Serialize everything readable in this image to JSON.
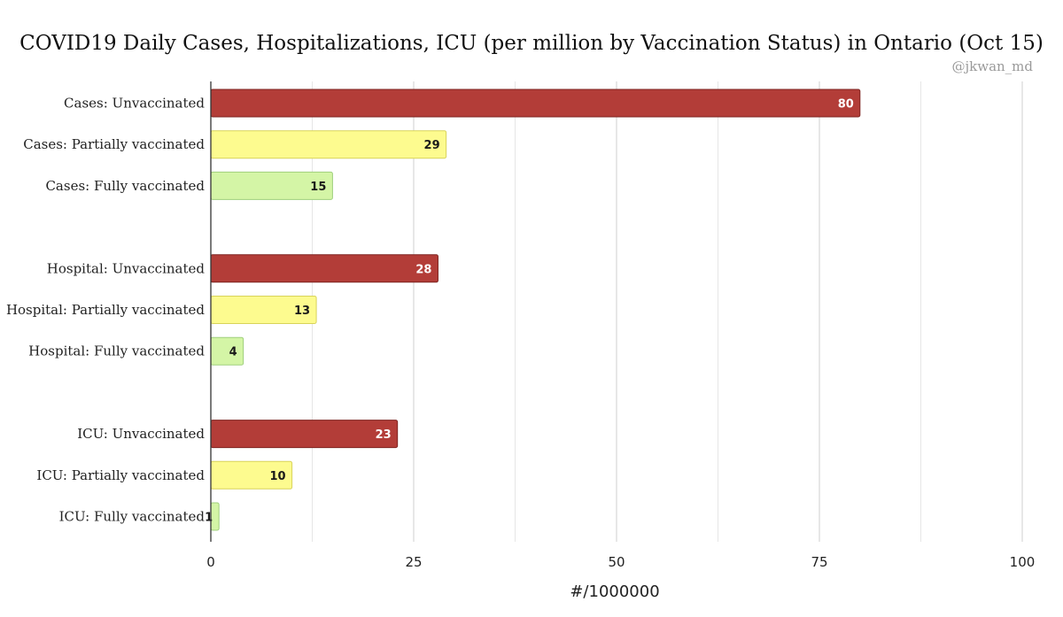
{
  "chart_data": {
    "type": "bar",
    "orientation": "horizontal",
    "title": "COVID19 Daily Cases, Hospitalizations, ICU (per million by Vaccination Status) in Ontario (Oct 15)",
    "credit": "@jkwan_md",
    "xlabel": "#/1000000",
    "ylabel": "",
    "xlim": [
      0,
      100
    ],
    "ticks": [
      0,
      25,
      50,
      75,
      100
    ],
    "grid": true,
    "legend": "none",
    "colors": {
      "unvaccinated": "#b33d38",
      "partially": "#fdfb8f",
      "fully": "#d4f5a6"
    },
    "groups": [
      {
        "bars": [
          {
            "label": "Cases: Unvaccinated",
            "value": 80,
            "status": "unvaccinated"
          },
          {
            "label": "Cases: Partially vaccinated",
            "value": 29,
            "status": "partially"
          },
          {
            "label": "Cases: Fully vaccinated",
            "value": 15,
            "status": "fully"
          }
        ]
      },
      {
        "bars": [
          {
            "label": "Hospital: Unvaccinated",
            "value": 28,
            "status": "unvaccinated"
          },
          {
            "label": "Hospital: Partially vaccinated",
            "value": 13,
            "status": "partially"
          },
          {
            "label": "Hospital: Fully vaccinated",
            "value": 4,
            "status": "fully"
          }
        ]
      },
      {
        "bars": [
          {
            "label": "ICU: Unvaccinated",
            "value": 23,
            "status": "unvaccinated"
          },
          {
            "label": "ICU: Partially vaccinated",
            "value": 10,
            "status": "partially"
          },
          {
            "label": "ICU: Fully vaccinated",
            "value": 1,
            "status": "fully"
          }
        ]
      }
    ]
  }
}
